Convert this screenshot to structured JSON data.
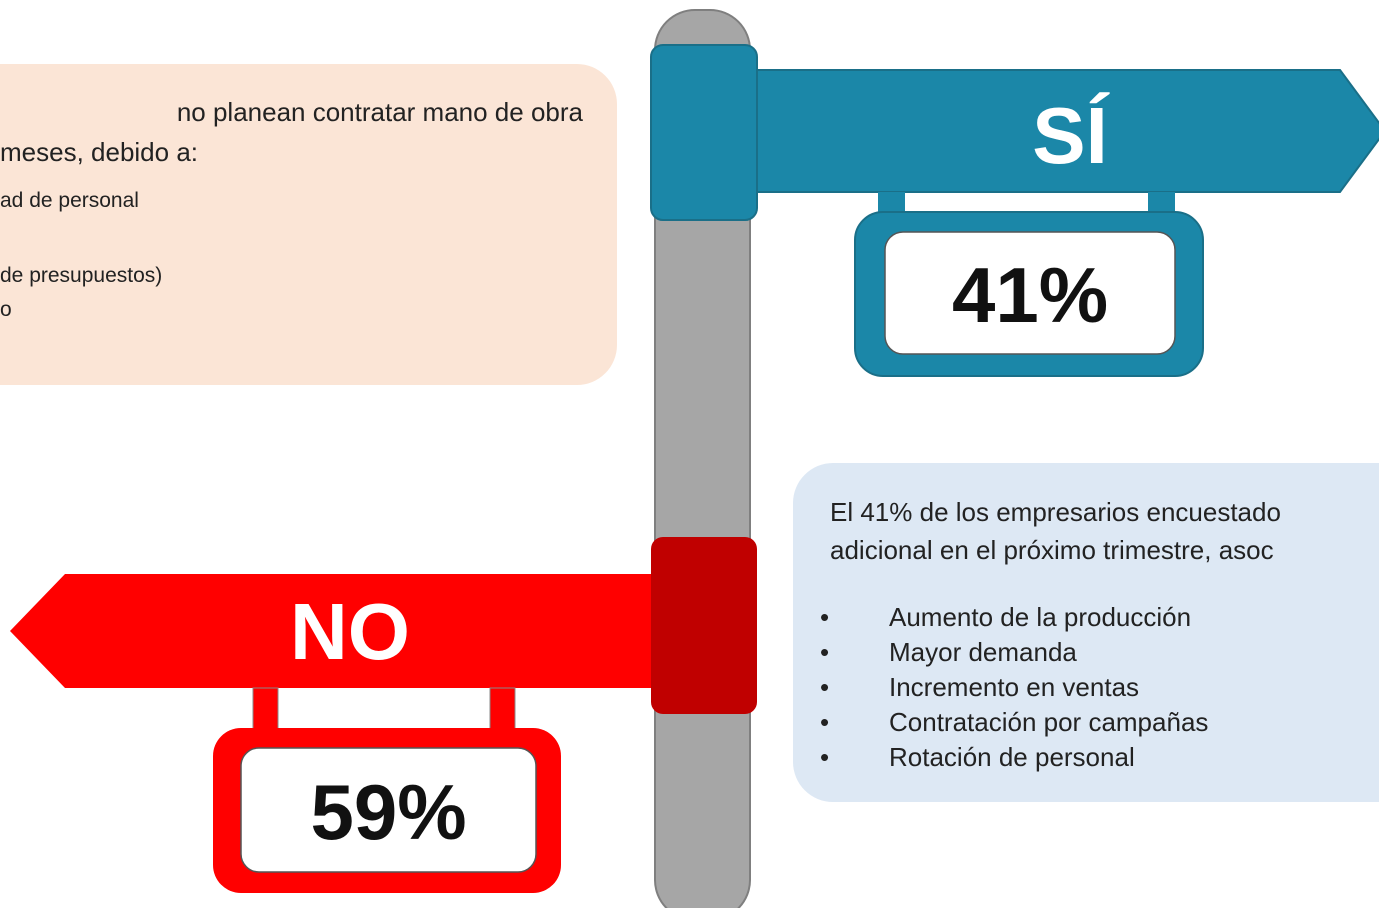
{
  "left_panel": {
    "lines": [
      "no planean contratar mano de obra",
      "meses, debido a:"
    ],
    "items": [
      "ad de personal",
      "de presupuestos)",
      "o"
    ]
  },
  "right_panel": {
    "lines": [
      "El 41% de los empresarios encuestado",
      "adicional en el próximo trimestre, asoc"
    ],
    "items": [
      "Aumento de la producción",
      "Mayor demanda",
      "Incremento en ventas",
      "Contratación por campañas",
      "Rotación de personal"
    ]
  },
  "yes_sign": {
    "label": "SÍ",
    "percent": "41%"
  },
  "no_sign": {
    "label": "NO",
    "percent": "59%"
  }
}
